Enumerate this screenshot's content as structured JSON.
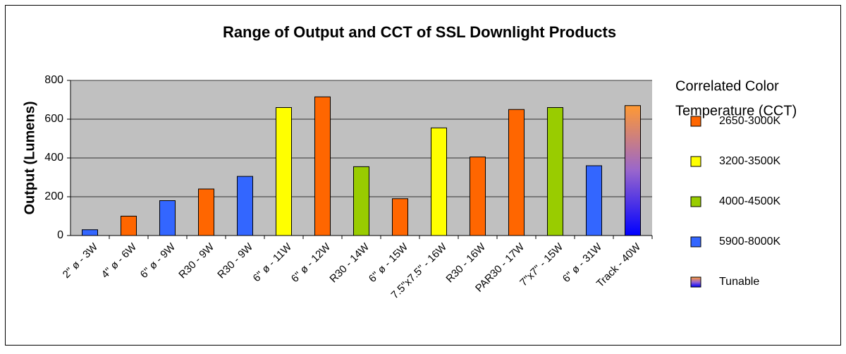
{
  "chart_data": {
    "type": "bar",
    "title": "Range of Output and CCT of SSL Downlight Products",
    "y_label": "Output (Lumens)",
    "categories": [
      "2\" ø - 3W",
      "4\" ø - 6W",
      "6\" ø - 9W",
      "R30 - 9W",
      "R30 - 9W",
      "6\" ø - 11W",
      "6\" ø - 12W",
      "R30 - 14W",
      "6\" ø - 15W",
      "7.5\"x7.5\" - 16W",
      "R30 - 16W",
      "PAR30 - 17W",
      "7\"x7\" - 15W",
      "6\" ø - 31W",
      "Track - 40W"
    ],
    "legend_title": [
      "Correlated Color",
      "Temperature (CCT)"
    ],
    "series": [
      {
        "name": "2650-3000K",
        "color": "#ff6600",
        "values": [
          null,
          100,
          null,
          240,
          null,
          null,
          715,
          null,
          190,
          null,
          405,
          650,
          null,
          null,
          null
        ]
      },
      {
        "name": "3200-3500K",
        "color": "#ffff00",
        "values": [
          null,
          null,
          null,
          null,
          null,
          660,
          null,
          null,
          null,
          555,
          null,
          null,
          null,
          null,
          null
        ]
      },
      {
        "name": "4000-4500K",
        "color": "#99cc00",
        "values": [
          null,
          null,
          null,
          null,
          null,
          null,
          null,
          355,
          null,
          null,
          null,
          null,
          660,
          null,
          null
        ]
      },
      {
        "name": "5900-8000K",
        "color": "#3366ff",
        "values": [
          30,
          null,
          180,
          null,
          305,
          null,
          null,
          null,
          null,
          null,
          null,
          null,
          null,
          360,
          null
        ]
      },
      {
        "name": "Tunable",
        "color": [
          "#ff9933",
          "#9966cc",
          "#0000ff"
        ],
        "values": [
          null,
          null,
          null,
          null,
          null,
          null,
          null,
          null,
          null,
          null,
          null,
          null,
          null,
          null,
          670
        ]
      }
    ],
    "ylim": [
      0,
      800
    ],
    "yticks": [
      0,
      200,
      400,
      600,
      800
    ],
    "grid": true,
    "plot_background": "#c0c0c0"
  }
}
